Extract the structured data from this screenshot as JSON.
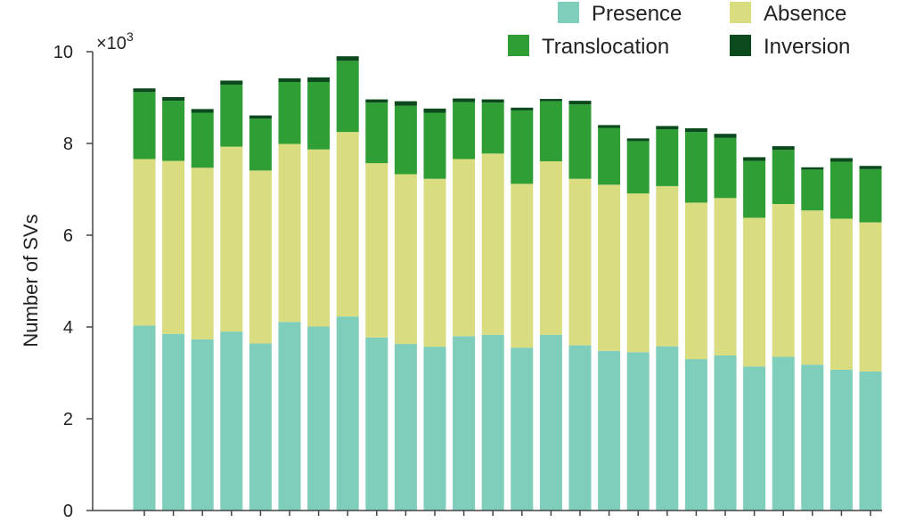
{
  "chart_data": {
    "type": "bar",
    "stacked": true,
    "ylabel": "Number of SVs",
    "y_multiplier_label": "×10",
    "y_multiplier_exponent": "3",
    "ylim": [
      0,
      10
    ],
    "yticks": [
      "0",
      "2",
      "4",
      "6",
      "8",
      "10"
    ],
    "legend_placement": "top-right",
    "colors": {
      "Presence": "#7fcdbb",
      "Absence": "#d9dd7f",
      "Translocation": "#2e9e35",
      "Inversion": "#0b4a1c"
    },
    "series": [
      {
        "name": "Presence",
        "values": [
          4.03,
          3.85,
          3.73,
          3.9,
          3.64,
          4.11,
          4.01,
          4.23,
          3.77,
          3.63,
          3.57,
          3.8,
          3.83,
          3.55,
          3.83,
          3.6,
          3.48,
          3.45,
          3.58,
          3.3,
          3.38,
          3.14,
          3.35,
          3.18,
          3.07,
          3.03
        ]
      },
      {
        "name": "Absence",
        "values": [
          3.63,
          3.77,
          3.74,
          4.03,
          3.77,
          3.88,
          3.86,
          4.02,
          3.8,
          3.7,
          3.66,
          3.86,
          3.95,
          3.57,
          3.78,
          3.63,
          3.62,
          3.46,
          3.49,
          3.41,
          3.43,
          3.24,
          3.33,
          3.36,
          3.29,
          3.25
        ]
      },
      {
        "name": "Translocation",
        "values": [
          1.46,
          1.31,
          1.2,
          1.35,
          1.13,
          1.35,
          1.47,
          1.55,
          1.32,
          1.49,
          1.44,
          1.24,
          1.11,
          1.6,
          1.31,
          1.62,
          1.24,
          1.14,
          1.24,
          1.54,
          1.31,
          1.24,
          1.18,
          0.89,
          1.24,
          1.16
        ]
      },
      {
        "name": "Inversion",
        "values": [
          0.08,
          0.08,
          0.08,
          0.09,
          0.07,
          0.08,
          0.1,
          0.1,
          0.07,
          0.1,
          0.09,
          0.08,
          0.07,
          0.06,
          0.05,
          0.08,
          0.06,
          0.06,
          0.07,
          0.08,
          0.09,
          0.08,
          0.08,
          0.05,
          0.08,
          0.07
        ]
      }
    ]
  }
}
